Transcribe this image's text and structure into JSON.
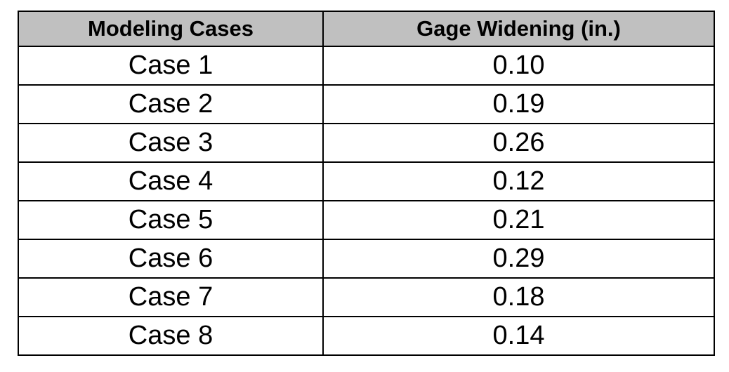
{
  "table": {
    "headers": [
      "Modeling Cases",
      "Gage Widening (in.)"
    ],
    "rows": [
      [
        "Case 1",
        "0.10"
      ],
      [
        "Case 2",
        "0.19"
      ],
      [
        "Case 3",
        "0.26"
      ],
      [
        "Case 4",
        "0.12"
      ],
      [
        "Case 5",
        "0.21"
      ],
      [
        "Case 6",
        "0.29"
      ],
      [
        "Case 7",
        "0.18"
      ],
      [
        "Case 8",
        "0.14"
      ]
    ]
  },
  "colors": {
    "header_background": "#c0c0c0",
    "border": "#000000",
    "text": "#000000"
  }
}
